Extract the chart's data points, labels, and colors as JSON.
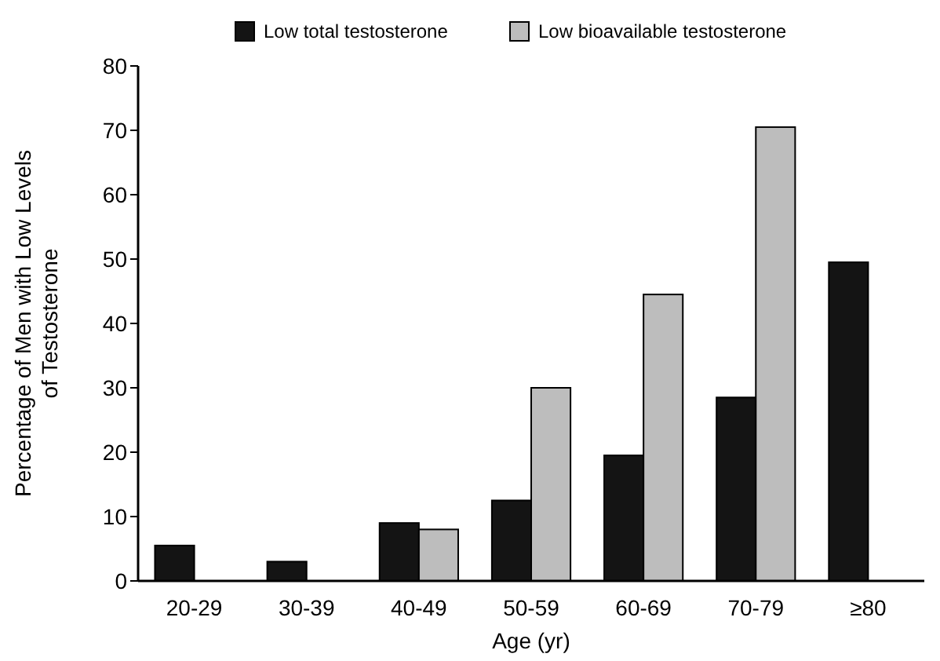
{
  "chart_data": {
    "type": "bar",
    "xlabel": "Age (yr)",
    "ylabel": "Percentage of Men with Low Levels\nof Testosterone",
    "categories": [
      "20-29",
      "30-39",
      "40-49",
      "50-59",
      "60-69",
      "70-79",
      "≥80"
    ],
    "series": [
      {
        "name": "Low total testosterone",
        "color": "#141414",
        "values": [
          5.5,
          3,
          9,
          12.5,
          19.5,
          28.5,
          49.5
        ]
      },
      {
        "name": "Low bioavailable testosterone",
        "color": "#bdbdbd",
        "values": [
          null,
          null,
          8,
          30,
          44.5,
          70.5,
          null
        ]
      }
    ],
    "ylim": [
      0,
      80
    ],
    "yticks": [
      0,
      10,
      20,
      30,
      40,
      50,
      60,
      70,
      80
    ],
    "grid": false,
    "legend": "top"
  }
}
